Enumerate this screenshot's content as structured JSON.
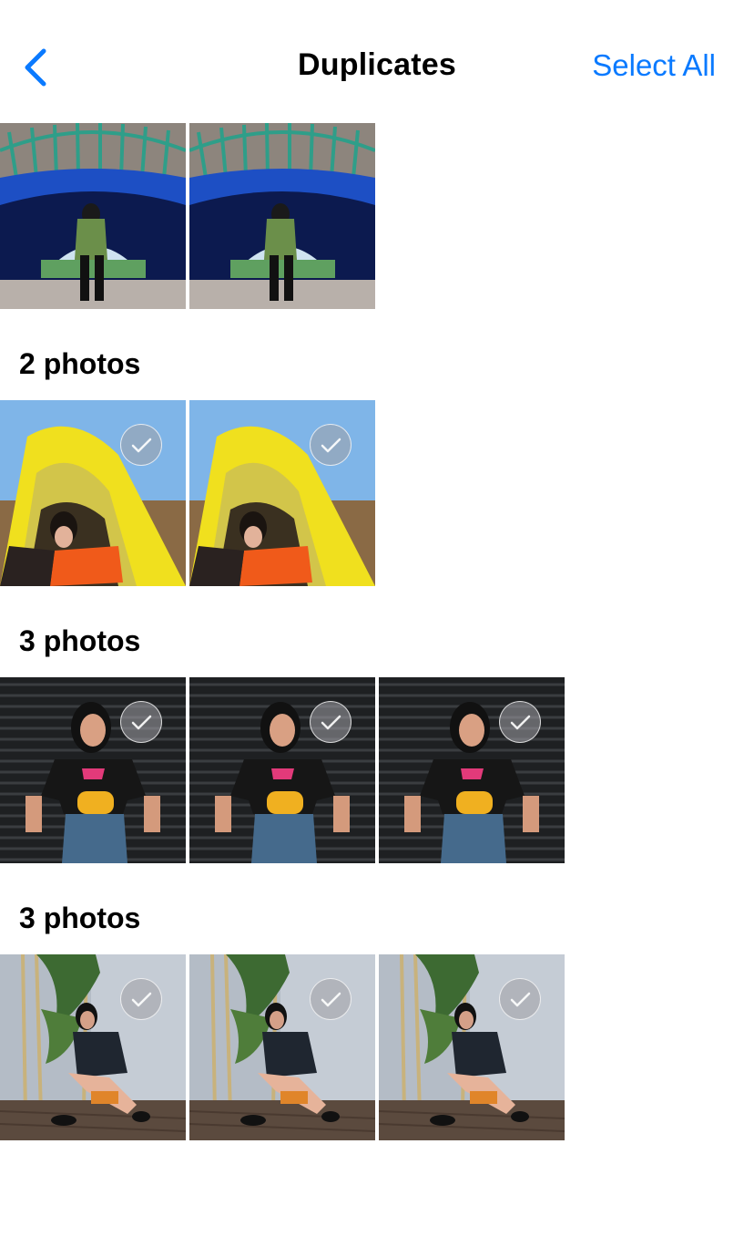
{
  "nav": {
    "title": "Duplicates",
    "select_all": "Select All",
    "back_icon": "chevron-left-icon"
  },
  "colors": {
    "accent": "#0a7aff"
  },
  "groups": [
    {
      "label": "",
      "count": 2,
      "scene": "tunnel"
    },
    {
      "label": "2 photos",
      "count": 2,
      "scene": "tent"
    },
    {
      "label": "3 photos",
      "count": 3,
      "scene": "wall"
    },
    {
      "label": "3 photos",
      "count": 3,
      "scene": "bamboo"
    }
  ]
}
